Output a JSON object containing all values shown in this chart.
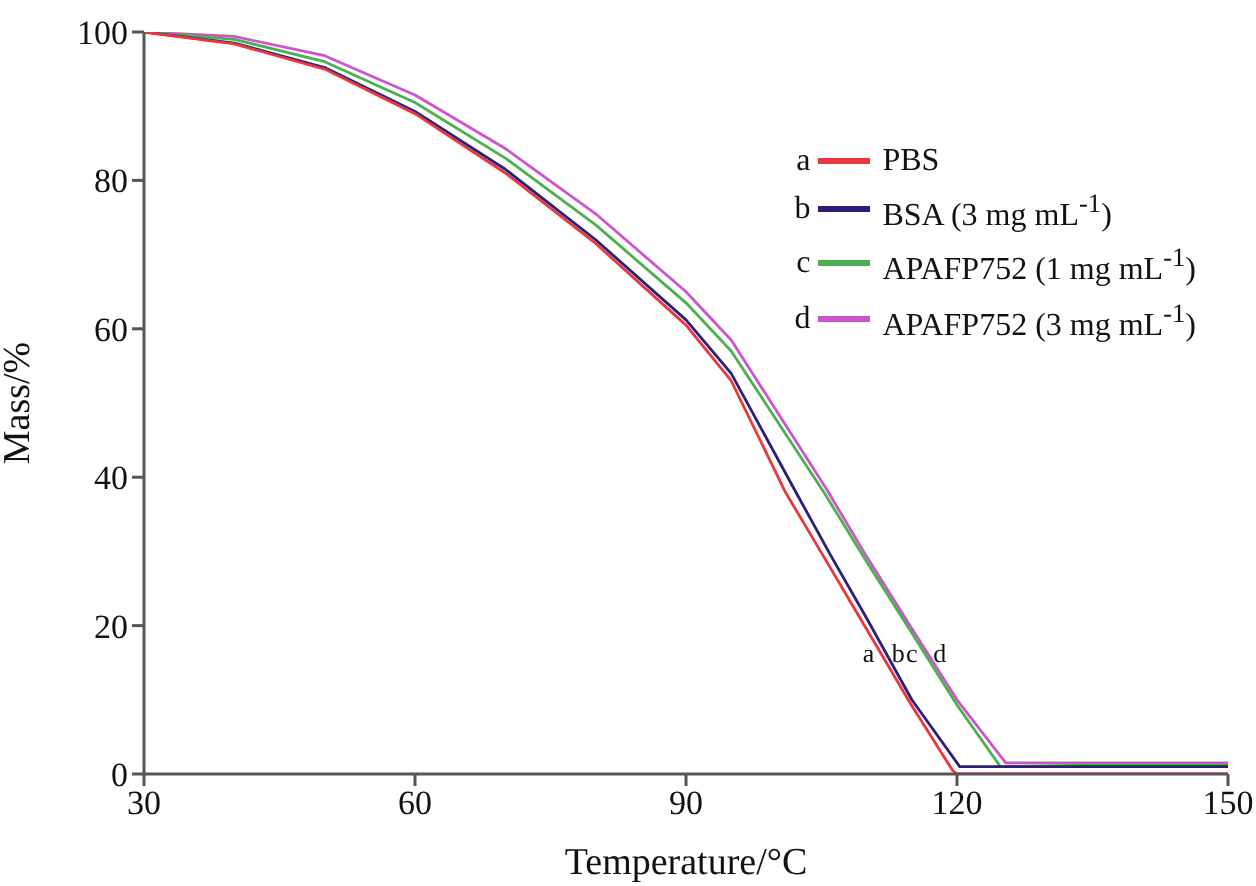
{
  "chart_data": {
    "type": "line",
    "xlabel": "Temperature/°C",
    "ylabel": "Mass/%",
    "xlim": [
      30,
      150
    ],
    "ylim": [
      0,
      100
    ],
    "xticks": [
      30,
      60,
      90,
      120,
      150
    ],
    "yticks": [
      0,
      20,
      40,
      60,
      80,
      100
    ],
    "grid": false,
    "legend": "top right",
    "marker": "none",
    "line_style": "solid",
    "annotations": [
      {
        "text": "a",
        "x": 111.5,
        "y": 16.4
      },
      {
        "text": "b",
        "x": 112.1,
        "y": 16.4
      },
      {
        "text": "c",
        "x": 116.3,
        "y": 16.4
      },
      {
        "text": "d",
        "x": 116.7,
        "y": 16.4
      }
    ],
    "series": [
      {
        "name": "PBS",
        "color": "#e8383d",
        "x": [
          30,
          40,
          50,
          60,
          70,
          80,
          90,
          95,
          101,
          105,
          110,
          115,
          119.5,
          120,
          135,
          150
        ],
        "values": [
          100,
          98.4,
          95,
          89,
          81,
          71.5,
          60.5,
          53,
          38,
          29.8,
          19.5,
          9.2,
          0.5,
          0,
          0,
          0
        ]
      },
      {
        "name": "BSA (3 mg mL$^{-1}$)",
        "color": "#2b1f7a",
        "x": [
          30,
          40,
          50,
          60,
          70,
          80,
          90,
          95,
          102.2,
          106,
          110,
          115,
          120.3,
          130,
          150
        ],
        "values": [
          100,
          98.5,
          95.2,
          89.3,
          81.5,
          72,
          61.2,
          54,
          37.9,
          29.5,
          21,
          10,
          1,
          1,
          1
        ]
      },
      {
        "name": "APAFP752 (1 mg mL$^{-1}$)",
        "color": "#4caf50",
        "x": [
          30,
          40,
          50,
          60,
          70,
          80,
          90,
          95,
          105.3,
          110,
          115,
          120,
          124.8,
          135,
          150
        ],
        "values": [
          100,
          99,
          96,
          90.5,
          83,
          74,
          63.5,
          57,
          37.9,
          28.6,
          19,
          9.3,
          1,
          1.2,
          1.2
        ]
      },
      {
        "name": "APAFP752 (3 mg mL$^{-1}$)",
        "color": "#cc55cc",
        "x": [
          30,
          40,
          50,
          60,
          70,
          80,
          90,
          95,
          105.5,
          110,
          115,
          120,
          125.4,
          135,
          150
        ],
        "values": [
          100,
          99.4,
          96.8,
          91.5,
          84.3,
          75.5,
          65,
          58.5,
          38.5,
          29.3,
          19.6,
          10,
          1.5,
          1.5,
          1.5
        ]
      }
    ]
  }
}
